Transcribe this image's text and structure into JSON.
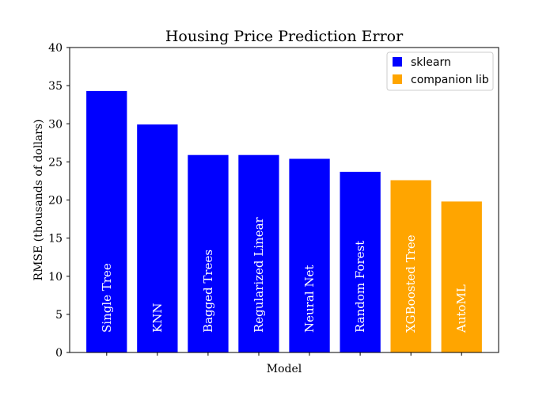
{
  "chart_data": {
    "type": "bar",
    "title": "Housing Price Prediction Error",
    "xlabel": "Model",
    "ylabel": "RMSE (thousands of dollars)",
    "ylim": [
      0,
      40
    ],
    "yticks": [
      "0",
      "5",
      "10",
      "15",
      "20",
      "25",
      "30",
      "35",
      "40"
    ],
    "grid": false,
    "legend_position": "top-right",
    "categories": [
      "Single Tree",
      "KNN",
      "Bagged Trees",
      "Regularized Linear",
      "Neural Net",
      "Random Forest",
      "XGBoosted Tree",
      "AutoML"
    ],
    "values": [
      34.3,
      29.9,
      25.9,
      25.9,
      25.4,
      23.7,
      22.6,
      19.8
    ],
    "groups": [
      "sklearn",
      "sklearn",
      "sklearn",
      "sklearn",
      "sklearn",
      "sklearn",
      "companion lib",
      "companion lib"
    ],
    "legend": [
      {
        "label": "sklearn",
        "color": "#0000ff"
      },
      {
        "label": "companion lib",
        "color": "#ffa500"
      }
    ]
  }
}
